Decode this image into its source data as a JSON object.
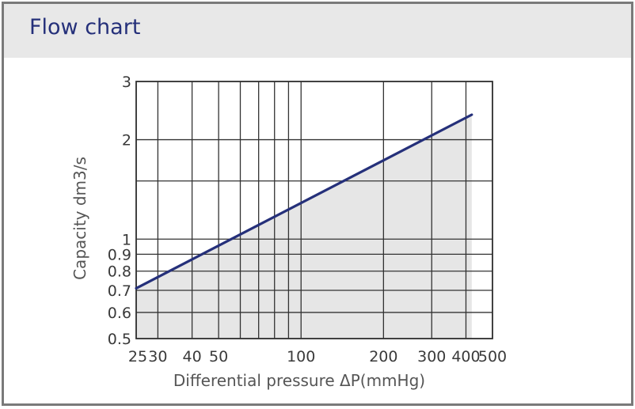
{
  "header": {
    "title": "Flow chart"
  },
  "chart_data": {
    "type": "line",
    "xlabel": "Differential pressure ΔP(mmHg)",
    "ylabel": "Capacity dm3/s",
    "x_scale": "log",
    "y_scale": "log",
    "xlim": [
      25,
      500
    ],
    "ylim": [
      0.5,
      3
    ],
    "x_ticks": [
      {
        "value": 25,
        "label": "25"
      },
      {
        "value": 30,
        "label": "30"
      },
      {
        "value": 40,
        "label": "40"
      },
      {
        "value": 50,
        "label": "50"
      },
      {
        "value": 100,
        "label": "100"
      },
      {
        "value": 200,
        "label": "200"
      },
      {
        "value": 300,
        "label": "300"
      },
      {
        "value": 400,
        "label": "400"
      },
      {
        "value": 500,
        "label": "500"
      }
    ],
    "x_grid": [
      25,
      30,
      40,
      50,
      60,
      70,
      80,
      90,
      100,
      200,
      300,
      400,
      500
    ],
    "y_ticks": [
      {
        "value": 0.5,
        "label": "0.5"
      },
      {
        "value": 0.6,
        "label": "0.6"
      },
      {
        "value": 0.7,
        "label": "0.7"
      },
      {
        "value": 0.8,
        "label": "0.8"
      },
      {
        "value": 0.9,
        "label": "0.9"
      },
      {
        "value": 1,
        "label": "1"
      },
      {
        "value": 2,
        "label": "2"
      },
      {
        "value": 3,
        "label": "3"
      }
    ],
    "y_grid": [
      0.5,
      0.6,
      0.7,
      0.8,
      0.9,
      1,
      1.5,
      2,
      3
    ],
    "grid": true,
    "series": [
      {
        "x": [
          25,
          420
        ],
        "y": [
          0.71,
          2.38
        ],
        "color": "#25307a",
        "fill": "#e6e6e6"
      }
    ]
  }
}
